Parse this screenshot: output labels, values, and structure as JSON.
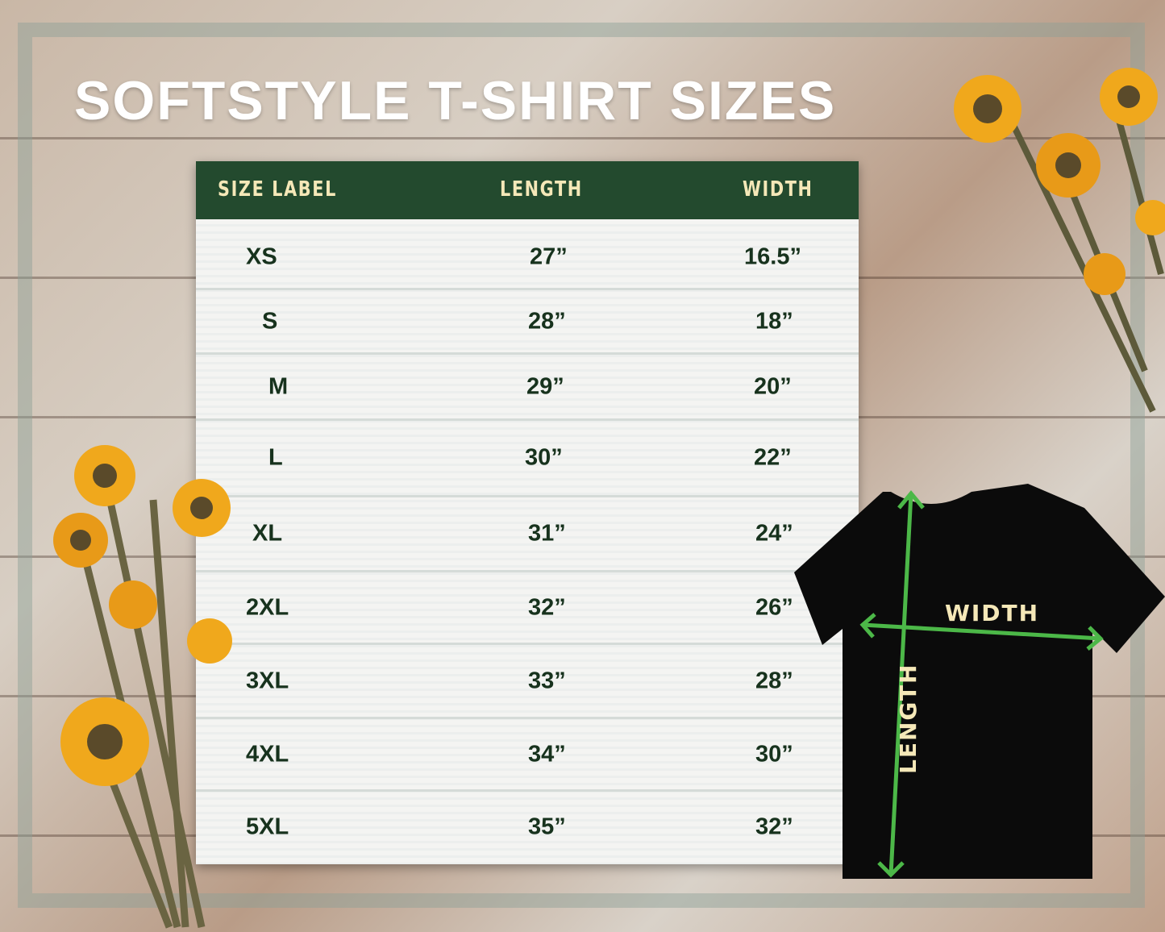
{
  "title": "SOFTSTYLE T-SHIRT SIZES",
  "table": {
    "headers": [
      "SIZE LABEL",
      "LENGTH",
      "WIDTH"
    ],
    "rows": [
      [
        "XS",
        "27”",
        "16.5”"
      ],
      [
        "S",
        "28”",
        "18”"
      ],
      [
        "M",
        "29”",
        "20”"
      ],
      [
        "L",
        "30”",
        "22”"
      ],
      [
        "XL",
        "31”",
        "24”"
      ],
      [
        "2XL",
        "32”",
        "26”"
      ],
      [
        "3XL",
        "33”",
        "28”"
      ],
      [
        "4XL",
        "34”",
        "30”"
      ],
      [
        "5XL",
        "35”",
        "32”"
      ]
    ]
  },
  "diagram": {
    "width_label": "WIDTH",
    "length_label": "LENGTH"
  },
  "colors": {
    "header": "#234a2e",
    "header_text": "#f5e8b8",
    "cell_text": "#17321d",
    "arrow": "#4cb848",
    "shirt": "#0b0b0b",
    "flower": "#f0a81c"
  }
}
